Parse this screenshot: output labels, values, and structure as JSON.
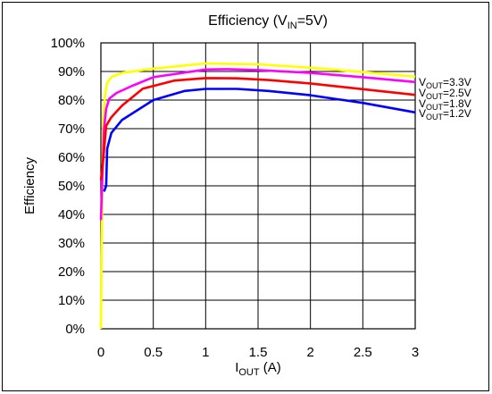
{
  "chart_data": {
    "type": "line",
    "title": {
      "main": "Efficiency (V",
      "sub": "IN",
      "rest": "=5V)"
    },
    "ylabel": "Efficiency",
    "xlabel": {
      "main": "I",
      "sub": "OUT",
      "rest": " (A)"
    },
    "xlim": [
      0,
      3
    ],
    "ylim": [
      0,
      100
    ],
    "x_ticks": [
      0,
      0.5,
      1,
      1.5,
      2,
      2.5,
      3
    ],
    "x_tick_labels": [
      "0",
      "0.5",
      "1",
      "1.5",
      "2",
      "2.5",
      "3"
    ],
    "y_ticks": [
      0,
      10,
      20,
      30,
      40,
      50,
      60,
      70,
      80,
      90,
      100
    ],
    "y_tick_labels": [
      "0%",
      "10%",
      "20%",
      "30%",
      "40%",
      "50%",
      "60%",
      "70%",
      "80%",
      "90%",
      "100%"
    ],
    "grid": true,
    "series": [
      {
        "name": "V_OUT=3.3V",
        "label": {
          "main": "V",
          "sub": "OUT",
          "rest": "=3.3V"
        },
        "color": "#ffff00",
        "x": [
          0.0,
          0.02,
          0.04,
          0.06,
          0.1,
          0.2,
          0.5,
          1.0,
          1.5,
          2.0,
          2.5,
          3.0
        ],
        "y": [
          0,
          72,
          82,
          86,
          88,
          89.5,
          91,
          92.8,
          92.5,
          91.3,
          89.8,
          88.2
        ]
      },
      {
        "name": "V_OUT=2.5V",
        "label": {
          "main": "V",
          "sub": "OUT",
          "rest": "=2.5V"
        },
        "color": "#ff00ff",
        "x": [
          0.0,
          0.03,
          0.05,
          0.08,
          0.15,
          0.3,
          0.5,
          1.0,
          1.2,
          1.5,
          2.0,
          2.5,
          3.0
        ],
        "y": [
          38,
          70,
          77,
          80.5,
          82.5,
          85,
          88,
          90.7,
          90.8,
          90.5,
          89.5,
          88,
          86.3
        ]
      },
      {
        "name": "V_OUT=1.8V",
        "label": {
          "main": "V",
          "sub": "OUT",
          "rest": "=1.8V"
        },
        "color": "#ff0000",
        "x": [
          0.0,
          0.02,
          0.05,
          0.1,
          0.2,
          0.4,
          0.7,
          1.0,
          1.3,
          1.6,
          2.0,
          2.5,
          3.0
        ],
        "y": [
          52,
          58,
          71,
          74,
          78,
          84,
          86.8,
          87.7,
          87.6,
          87,
          85.8,
          83.8,
          81.8
        ]
      },
      {
        "name": "V_OUT=1.2V",
        "label": {
          "main": "V",
          "sub": "OUT",
          "rest": "=1.2V"
        },
        "color": "#0000ff",
        "x": [
          0.03,
          0.05,
          0.06,
          0.1,
          0.2,
          0.5,
          0.8,
          1.0,
          1.3,
          1.6,
          2.0,
          2.5,
          3.0
        ],
        "y": [
          48,
          50,
          63,
          68.5,
          73,
          80,
          83.2,
          83.9,
          83.9,
          83.2,
          81.7,
          79,
          75.7
        ]
      }
    ]
  }
}
